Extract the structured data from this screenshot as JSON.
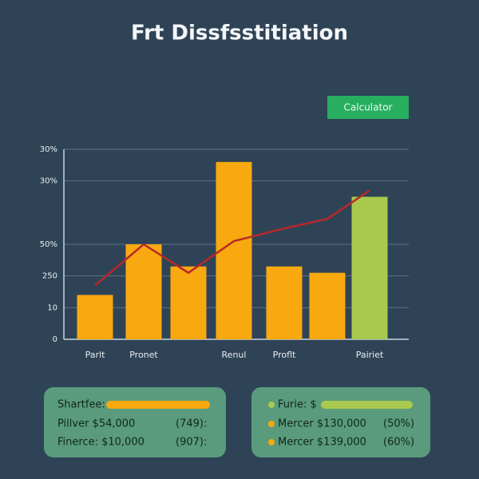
{
  "title": "Frt Dissfsstitiation",
  "button": "Calculator",
  "chart_data": {
    "type": "bar",
    "categories": [
      "Parlt",
      "Pronet",
      null,
      "Renul",
      "Proflt",
      null,
      "Pairiet"
    ],
    "values": [
      14,
      30,
      23,
      56,
      23,
      21,
      45
    ],
    "colors": [
      "#f7a90f",
      "#f7a90f",
      "#f7a90f",
      "#f7a90f",
      "#f7a90f",
      "#f7a90f",
      "#a9c94e"
    ],
    "line": {
      "color": "#b8282a",
      "values": [
        17,
        30,
        21,
        31,
        35,
        38,
        47
      ]
    },
    "ylim": [
      0,
      60
    ],
    "yticks": [
      0,
      10,
      {
        "value": 20,
        "label": "250"
      },
      {
        "value": 30,
        "label": "50%"
      },
      {
        "value": 50,
        "label": "30%"
      },
      {
        "value": 60,
        "label": "30%"
      }
    ],
    "grid": true
  },
  "panels": [
    {
      "rows": [
        "Shartfee:",
        "Pillver  $54,000",
        "(749):",
        "Finerce: $10,000",
        "(907):"
      ]
    },
    {
      "rows": [
        "Furie:  $",
        "Mercer  $130,000",
        "(50%)",
        "Mercer  $139,000",
        "(60%)"
      ]
    }
  ]
}
